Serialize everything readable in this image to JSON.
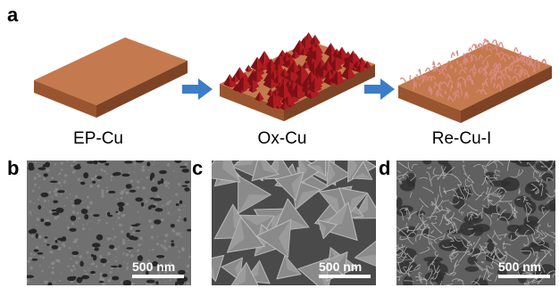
{
  "figure": {
    "panel_a": {
      "letter": "a",
      "steps": [
        {
          "label": "EP-Cu",
          "icon": "copper-slab-icon"
        },
        {
          "label": "Ox-Cu",
          "icon": "oxidized-copper-slab-icon"
        },
        {
          "label": "Re-Cu-I",
          "icon": "reduced-copper-slab-icon"
        }
      ],
      "arrow_icon": "blue-arrow-icon",
      "colors": {
        "copper_top": "#c47a4e",
        "copper_front": "#9a5530",
        "copper_side": "#7e4325",
        "crystal": "#b01c22",
        "crystal_dark": "#7d1015",
        "nanowire": "#d98a80",
        "arrow": "#3d7cc9"
      }
    },
    "sem_panels": [
      {
        "letter": "b",
        "scale_label": "500 nm",
        "texture": "porous-surface"
      },
      {
        "letter": "c",
        "scale_label": "500 nm",
        "texture": "octahedral-crystals"
      },
      {
        "letter": "d",
        "scale_label": "500 nm",
        "texture": "nanowire-network"
      }
    ]
  }
}
